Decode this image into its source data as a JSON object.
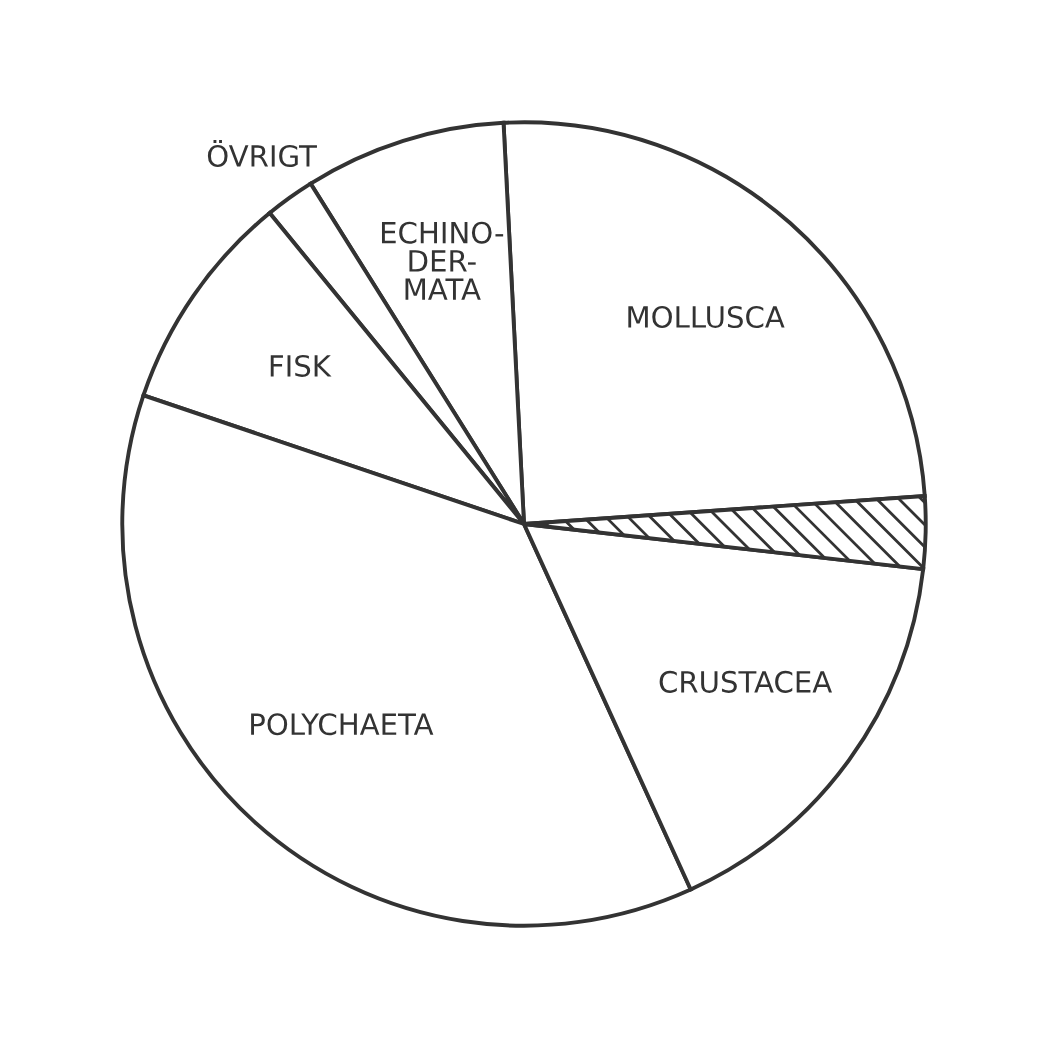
{
  "chart_data": {
    "type": "pie",
    "categories": [
      "MOLLUSCA",
      "ECHINO-\nDER-\nMATA",
      "ÖVRIGT",
      "FISK",
      "POLYCHAETA",
      "CRUSTACEA",
      null
    ],
    "values": [
      24.7,
      8.1,
      2.0,
      8.9,
      37.0,
      16.4,
      2.9
    ],
    "colors": [
      "#ffffff",
      "#ffffff",
      "#ffffff",
      "#ffffff",
      "#ffffff",
      "#ffffff",
      "#333333"
    ],
    "legend": false
  }
}
